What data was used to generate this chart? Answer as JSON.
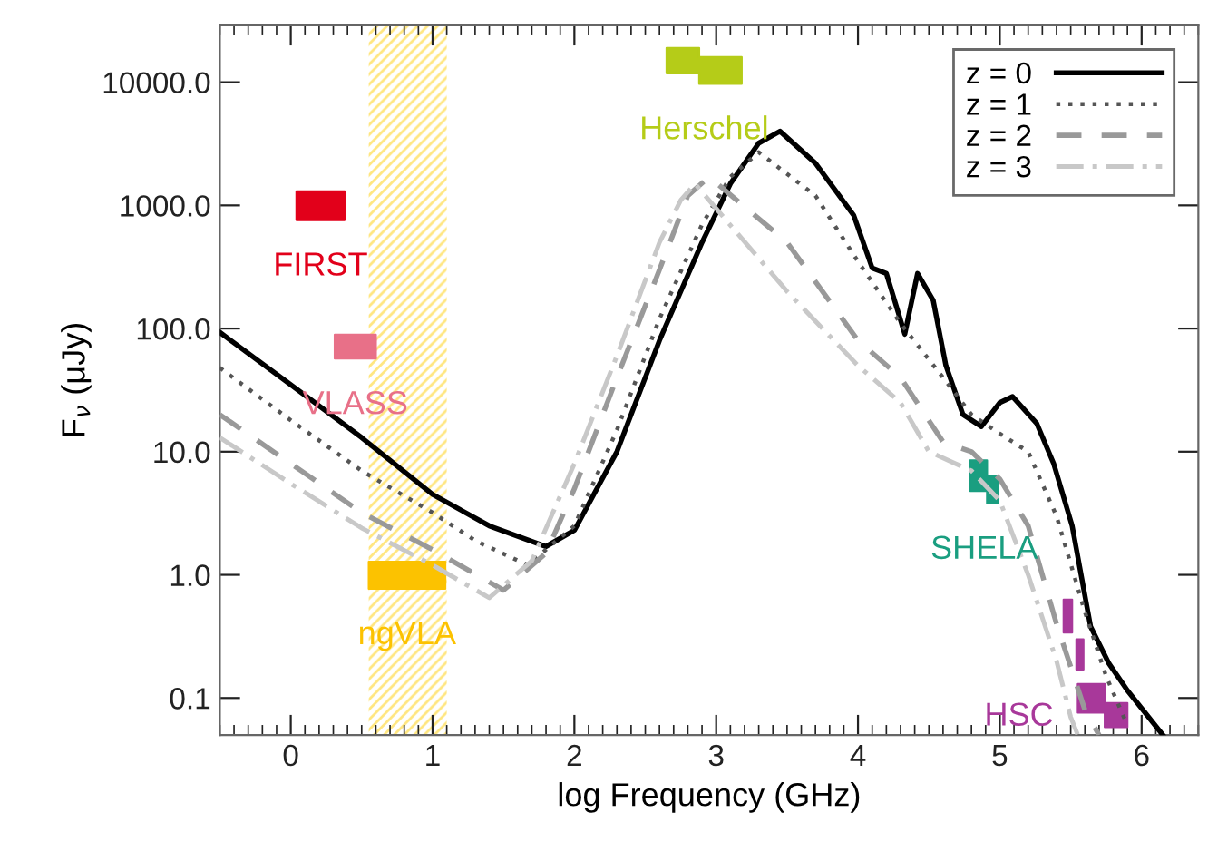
{
  "chart_data": {
    "type": "line",
    "xlabel": "log Frequency (GHz)",
    "ylabel": "F$_{ν}$ (μJy)",
    "log": "y",
    "grid": false,
    "legend": "top right",
    "xlim": [
      -0.5,
      6.4
    ],
    "xticks": [
      0,
      1,
      2,
      3,
      4,
      5,
      6
    ],
    "ylim": [
      0.05,
      29000
    ],
    "yticks": [
      {
        "value": 0.1,
        "label": "0.1"
      },
      {
        "value": 1,
        "label": "1.0"
      },
      {
        "value": 10,
        "label": "10.0"
      },
      {
        "value": 100,
        "label": "100.0"
      },
      {
        "value": 1000,
        "label": "1000.0"
      },
      {
        "value": 10000,
        "label": "10000.0"
      }
    ],
    "bands": [
      {
        "axis": "x",
        "from": 0.55,
        "to": 1.1,
        "color": "#ffe680"
      }
    ],
    "series": [
      {
        "name": "z = 0",
        "color": "#000000",
        "line_style": "solid",
        "x": [
          -0.5,
          0,
          0.5,
          1,
          1.4,
          1.8,
          2.0,
          2.3,
          2.6,
          2.9,
          3.1,
          3.3,
          3.45,
          3.7,
          3.97,
          4.1,
          4.2,
          4.33,
          4.42,
          4.53,
          4.62,
          4.74,
          4.87,
          5.0,
          5.09,
          5.26,
          5.38,
          5.51,
          5.64,
          5.77,
          5.9,
          6.15
        ],
        "values": [
          93,
          35,
          13,
          4.5,
          2.5,
          1.7,
          2.3,
          10,
          80,
          500,
          1500,
          3200,
          4000,
          2200,
          830,
          310,
          280,
          90,
          280,
          170,
          50,
          20,
          16,
          25,
          28,
          17,
          8,
          2.5,
          0.38,
          0.19,
          0.115,
          0.05
        ]
      },
      {
        "name": "z = 1",
        "color": "#555555",
        "line_style": "dotted",
        "x": [
          -0.5,
          0,
          0.5,
          1,
          1.3,
          1.67,
          2.0,
          2.3,
          2.6,
          2.9,
          3.1,
          3.3,
          3.7,
          4.0,
          4.3,
          4.6,
          4.8,
          5.0,
          5.2,
          5.4,
          5.6,
          5.75,
          5.9
        ],
        "values": [
          48,
          18,
          7,
          3.2,
          1.9,
          1.2,
          2.5,
          15,
          120,
          700,
          1700,
          2700,
          1200,
          350,
          110,
          40,
          20,
          14,
          10,
          3,
          0.5,
          0.15,
          0.06
        ]
      },
      {
        "name": "z = 2",
        "color": "#999999",
        "line_style": "dashed",
        "x": [
          -0.5,
          0,
          0.5,
          1,
          1.5,
          1.8,
          2.0,
          2.3,
          2.6,
          2.8,
          2.95,
          3.5,
          4.0,
          4.3,
          4.6,
          4.8,
          5.0,
          5.2,
          5.4,
          5.6,
          5.7
        ],
        "values": [
          20,
          8,
          3.2,
          1.6,
          0.75,
          1.5,
          5,
          40,
          300,
          1200,
          1700,
          500,
          80,
          40,
          12,
          10,
          6,
          2.5,
          0.4,
          0.08,
          0.05
        ]
      },
      {
        "name": "z = 3",
        "color": "#c8c8c8",
        "line_style": "dashdot",
        "x": [
          -0.5,
          0,
          0.5,
          1,
          1.4,
          1.7,
          2.0,
          2.3,
          2.6,
          2.75,
          2.85,
          3.5,
          4.0,
          4.3,
          4.5,
          4.8,
          5.0,
          5.2,
          5.4,
          5.5,
          5.55
        ],
        "values": [
          13,
          5.5,
          2.4,
          1.2,
          0.65,
          1.3,
          8,
          60,
          500,
          1100,
          1500,
          200,
          50,
          25,
          10,
          7,
          4,
          1,
          0.2,
          0.07,
          0.05
        ]
      },
      {
        "type": "area",
        "color": "#e2001a",
        "x": [
          0.04,
          0.38,
          0.38,
          0.04,
          0.04
        ],
        "values": [
          760,
          760,
          1300,
          1300,
          760
        ]
      },
      {
        "type": "area",
        "color": "#e87088",
        "x": [
          0.31,
          0.6,
          0.6,
          0.31,
          0.31
        ],
        "values": [
          57,
          57,
          89,
          89,
          57
        ]
      },
      {
        "type": "area",
        "color": "#fcc200",
        "x": [
          0.55,
          1.09,
          1.09,
          0.55,
          0.55
        ],
        "values": [
          0.77,
          0.77,
          1.28,
          1.28,
          0.77
        ]
      },
      {
        "type": "area",
        "color": "#b5cc18",
        "x": [
          2.65,
          2.88,
          2.88,
          3.18,
          3.18,
          2.88,
          2.88,
          2.65,
          2.65
        ],
        "values": [
          11800,
          11800,
          9700,
          9700,
          16000,
          16000,
          19000,
          19000,
          11800
        ]
      },
      {
        "type": "area",
        "color": "#1a9e80",
        "x": [
          4.79,
          4.91,
          4.91,
          4.99,
          4.99,
          4.91,
          4.91,
          4.79,
          4.79
        ],
        "values": [
          4.8,
          4.8,
          3.8,
          3.8,
          6.3,
          6.3,
          8.5,
          8.5,
          4.8
        ]
      },
      {
        "type": "area",
        "color": "#a8389a",
        "x": [
          5.45,
          5.51,
          5.51,
          5.45,
          5.45
        ],
        "values": [
          0.34,
          0.34,
          0.63,
          0.63,
          0.34
        ]
      },
      {
        "type": "area",
        "color": "#a8389a",
        "x": [
          5.54,
          5.59,
          5.59,
          5.54,
          5.54
        ],
        "values": [
          0.17,
          0.17,
          0.3,
          0.3,
          0.17
        ]
      },
      {
        "type": "area",
        "color": "#a8389a",
        "x": [
          5.55,
          5.74,
          5.74,
          5.9,
          5.9,
          5.74,
          5.74,
          5.55,
          5.55
        ],
        "values": [
          0.076,
          0.076,
          0.058,
          0.058,
          0.091,
          0.091,
          0.13,
          0.13,
          0.076
        ]
      }
    ],
    "annotations": [
      "FIRST",
      "VLASS",
      "ngVLA",
      "Herschel",
      "SHELA",
      "HSC"
    ]
  }
}
